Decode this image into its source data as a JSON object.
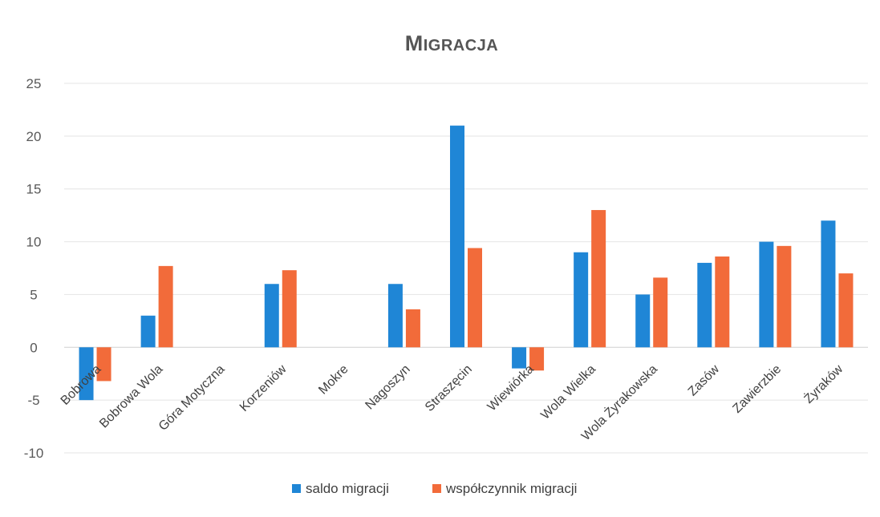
{
  "chart_data": {
    "type": "bar",
    "title": "Migracja",
    "categories": [
      "Bobrowa",
      "Bobrowa Wola",
      "Góra Motyczna",
      "Korzeniów",
      "Mokre",
      "Nagoszyn",
      "Straszęcin",
      "Wiewiórka",
      "Wola Wielka",
      "Wola Żyrakowska",
      "Zasów",
      "Zawierzbie",
      "Żyraków"
    ],
    "series": [
      {
        "name": "saldo migracji",
        "color": "#1f86d6",
        "values": [
          -5,
          3,
          0,
          6,
          0,
          6,
          21,
          -2,
          9,
          5,
          8,
          10,
          12
        ]
      },
      {
        "name": "współczynnik migracji",
        "color": "#f26b3a",
        "values": [
          -3.2,
          7.7,
          0,
          7.3,
          0,
          3.6,
          9.4,
          -2.2,
          13,
          6.6,
          8.6,
          9.6,
          7
        ]
      }
    ],
    "ylim": [
      -10,
      25
    ],
    "yticks": [
      -10,
      -5,
      0,
      5,
      10,
      15,
      20,
      25
    ],
    "grid": true,
    "legend_position": "bottom",
    "xlabel": "",
    "ylabel": ""
  }
}
